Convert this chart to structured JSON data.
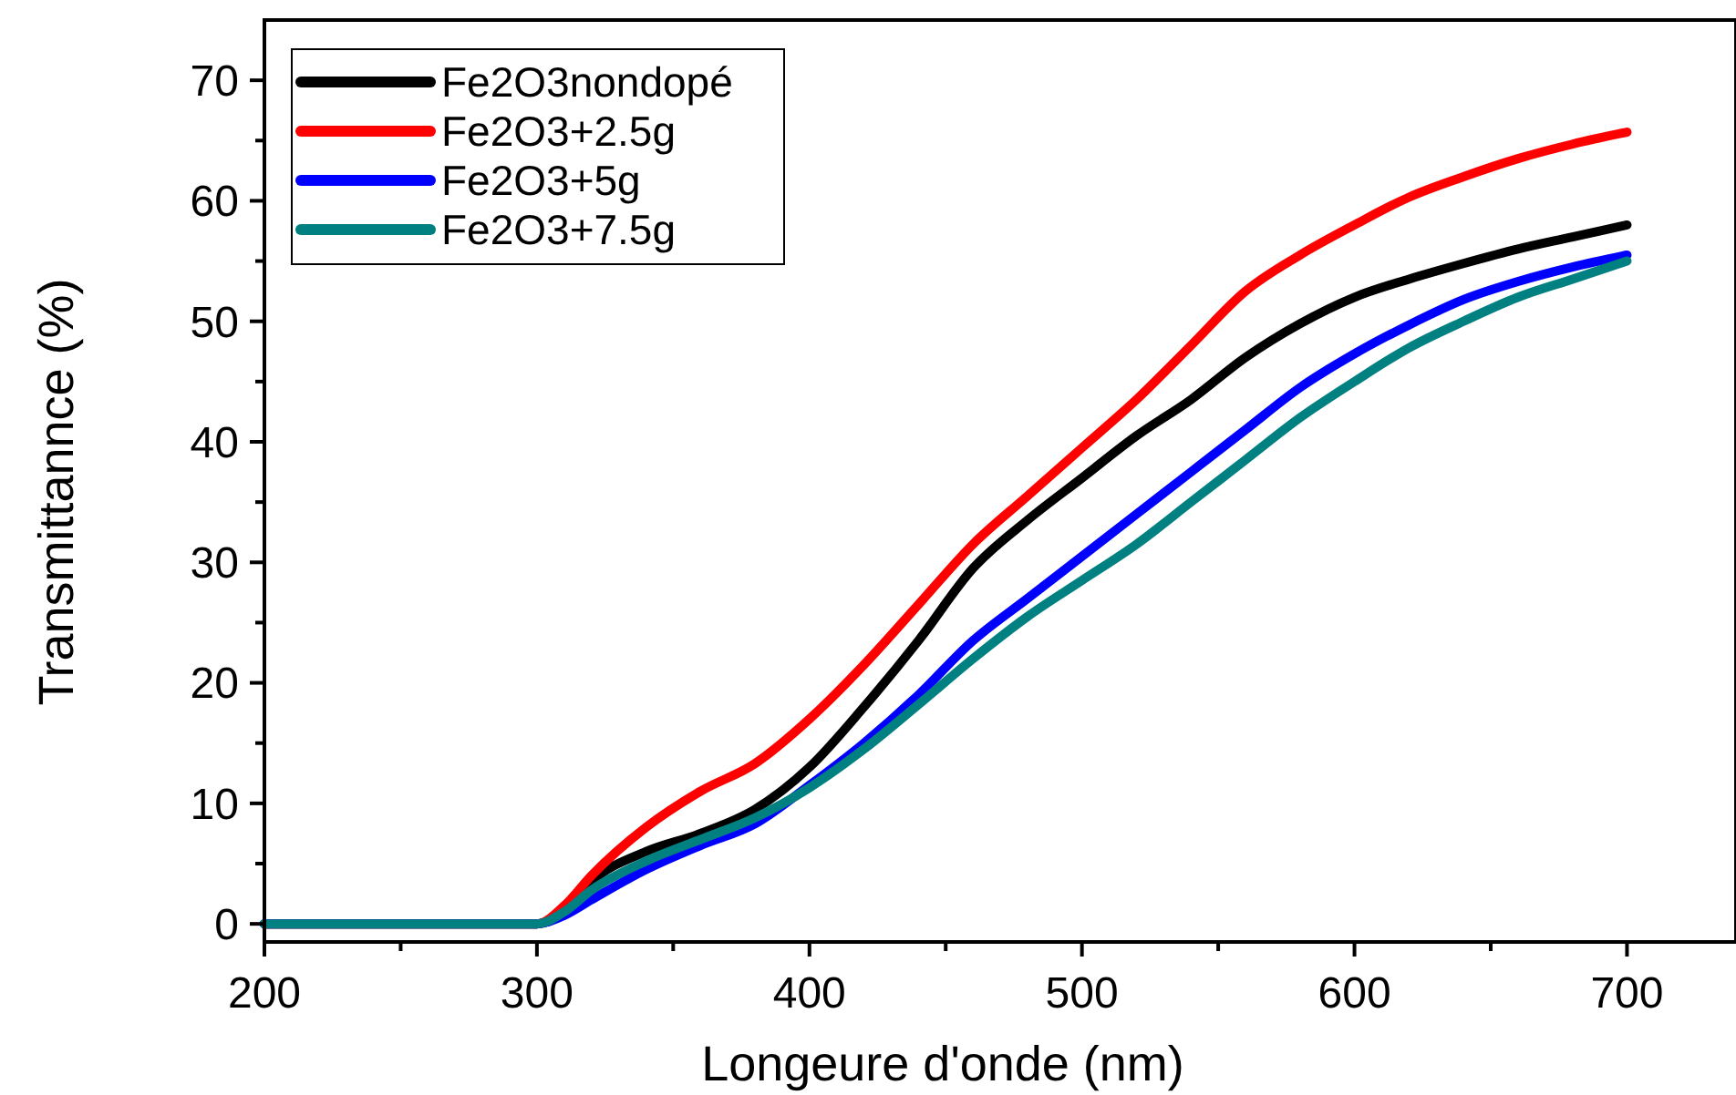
{
  "chart_data": {
    "type": "line",
    "xlabel": "Longeure d'onde (nm)",
    "ylabel": "Transmittannce (%)",
    "xlim": [
      200,
      740
    ],
    "ylim": [
      -1.5,
      75
    ],
    "xticks": [
      200,
      {
        "value": 250,
        "label": null
      },
      300,
      {
        "value": 350,
        "label": null
      },
      400,
      {
        "value": 450,
        "label": null
      },
      500,
      {
        "value": 550,
        "label": null
      },
      600,
      {
        "value": 650,
        "label": null
      },
      700
    ],
    "yticks": [
      0,
      {
        "value": 5,
        "label": null
      },
      10,
      {
        "value": 15,
        "label": null
      },
      20,
      {
        "value": 25,
        "label": null
      },
      30,
      {
        "value": 35,
        "label": null
      },
      40,
      {
        "value": 45,
        "label": null
      },
      50,
      {
        "value": 55,
        "label": null
      },
      60,
      {
        "value": 65,
        "label": null
      },
      70
    ],
    "grid": false,
    "legend": "top left",
    "line_style": "solid",
    "x": [
      200,
      250,
      300,
      310,
      320,
      340,
      360,
      380,
      400,
      420,
      440,
      460,
      480,
      500,
      520,
      540,
      560,
      580,
      600,
      620,
      640,
      660,
      680,
      700
    ],
    "series": [
      {
        "name": "Fe2O3nondopé",
        "color": "#000000",
        "values": [
          0,
          0,
          0,
          1,
          3.5,
          6,
          7.5,
          9.5,
          13,
          18,
          23.5,
          29.5,
          33.5,
          37,
          40.5,
          43.5,
          47,
          49.8,
          52,
          53.5,
          54.8,
          56,
          57,
          58
        ]
      },
      {
        "name": "Fe2O3+2.5g",
        "color": "#ff0000",
        "values": [
          0,
          0,
          0,
          1.5,
          4,
          8,
          11,
          13.3,
          17,
          21.5,
          26.5,
          31.5,
          35.5,
          39.5,
          43.5,
          48,
          52.5,
          55.5,
          58,
          60.3,
          62,
          63.5,
          64.7,
          65.7
        ]
      },
      {
        "name": "Fe2O3+5g",
        "color": "#0000ff",
        "values": [
          0,
          0,
          0,
          0.7,
          2,
          4.5,
          6.5,
          8.3,
          11.5,
          15,
          19,
          23.5,
          27,
          30.5,
          34,
          37.5,
          41,
          44.5,
          47.3,
          49.7,
          51.8,
          53.3,
          54.5,
          55.5
        ]
      },
      {
        "name": "Fe2O3+7.5g",
        "color": "#008080",
        "values": [
          0,
          0,
          0,
          1,
          2.8,
          5.2,
          7,
          8.8,
          11.3,
          14.5,
          18.2,
          22,
          25.5,
          28.5,
          31.5,
          35,
          38.5,
          42,
          45,
          47.8,
          50,
          52,
          53.5,
          55
        ]
      }
    ]
  }
}
